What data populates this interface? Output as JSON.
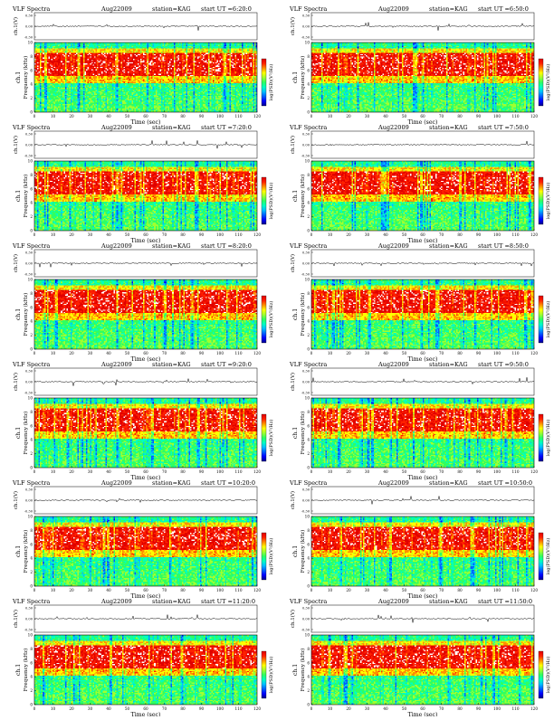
{
  "colors": {
    "colormap": [
      "#00008c",
      "#0000ff",
      "#0060ff",
      "#00c0ff",
      "#00ffc0",
      "#30ff60",
      "#a0ff30",
      "#ffff00",
      "#ff9000",
      "#ff2000",
      "#e00000",
      "#ffffff"
    ],
    "trace": "#000000",
    "frame": "#000000"
  },
  "chart_data": [
    {
      "type": "heatmap",
      "title": "VLF Spectra",
      "date": "Aug22009",
      "station": "station=KAG",
      "start": "start UT =6:20:0",
      "trace_ylabel": "ch.1(V)",
      "trace_ticks": [
        "0.30",
        "0.00",
        "-0.30"
      ],
      "channel_label": "ch.1",
      "ylabel": "Frequency (kHz)",
      "xlabel": "Time (sec)",
      "x_ticks": [
        "0",
        "10",
        "20",
        "30",
        "40",
        "50",
        "60",
        "70",
        "80",
        "90",
        "100",
        "110",
        "120"
      ],
      "y_ticks": [
        "0",
        "2",
        "4",
        "6",
        "8",
        "10"
      ],
      "xlim": [
        0,
        120
      ],
      "ylim": [
        0,
        10
      ],
      "colorbar_label": "log(PSD)(V²/Hz)"
    },
    {
      "type": "heatmap",
      "title": "VLF Spectra",
      "date": "Aug22009",
      "station": "station=KAG",
      "start": "start UT =6:50:0",
      "trace_ylabel": "ch.1(V)",
      "trace_ticks": [
        "0.30",
        "0.00",
        "-0.30"
      ],
      "channel_label": "ch.1",
      "ylabel": "Frequency (kHz)",
      "xlabel": "Time (sec)",
      "x_ticks": [
        "0",
        "10",
        "20",
        "30",
        "40",
        "50",
        "60",
        "70",
        "80",
        "90",
        "100",
        "110",
        "120"
      ],
      "y_ticks": [
        "0",
        "2",
        "4",
        "6",
        "8",
        "10"
      ],
      "xlim": [
        0,
        120
      ],
      "ylim": [
        0,
        10
      ],
      "colorbar_label": "log(PSD)(V²/Hz)"
    },
    {
      "type": "heatmap",
      "title": "VLF Spectra",
      "date": "Aug22009",
      "station": "station=KAG",
      "start": "start UT =7:20:0",
      "trace_ylabel": "ch.1(V)",
      "trace_ticks": [
        "0.30",
        "0.00",
        "-0.30"
      ],
      "channel_label": "ch.1",
      "ylabel": "Frequency (kHz)",
      "xlabel": "Time (sec)",
      "x_ticks": [
        "0",
        "10",
        "20",
        "30",
        "40",
        "50",
        "60",
        "70",
        "80",
        "90",
        "100",
        "110",
        "120"
      ],
      "y_ticks": [
        "0",
        "2",
        "4",
        "6",
        "8",
        "10"
      ],
      "xlim": [
        0,
        120
      ],
      "ylim": [
        0,
        10
      ],
      "colorbar_label": "log(PSD)(V²/Hz)"
    },
    {
      "type": "heatmap",
      "title": "VLF Spectra",
      "date": "Aug22009",
      "station": "station=KAG",
      "start": "start UT =7:50:0",
      "trace_ylabel": "ch.1(V)",
      "trace_ticks": [
        "0.30",
        "0.00",
        "-0.30"
      ],
      "channel_label": "ch.1",
      "ylabel": "Frequency (kHz)",
      "xlabel": "Time (sec)",
      "x_ticks": [
        "0",
        "10",
        "20",
        "30",
        "40",
        "50",
        "60",
        "70",
        "80",
        "90",
        "100",
        "110",
        "120"
      ],
      "y_ticks": [
        "0",
        "2",
        "4",
        "6",
        "8",
        "10"
      ],
      "xlim": [
        0,
        120
      ],
      "ylim": [
        0,
        10
      ],
      "colorbar_label": "log(PSD)(V²/Hz)"
    },
    {
      "type": "heatmap",
      "title": "VLF Spectra",
      "date": "Aug22009",
      "station": "station=KAG",
      "start": "start UT =8:20:0",
      "trace_ylabel": "ch.1(V)",
      "trace_ticks": [
        "0.30",
        "0.00",
        "-0.30"
      ],
      "channel_label": "ch.1",
      "ylabel": "Frequency (kHz)",
      "xlabel": "Time (sec)",
      "x_ticks": [
        "0",
        "10",
        "20",
        "30",
        "40",
        "50",
        "60",
        "70",
        "80",
        "90",
        "100",
        "110",
        "120"
      ],
      "y_ticks": [
        "0",
        "2",
        "4",
        "6",
        "8",
        "10"
      ],
      "xlim": [
        0,
        120
      ],
      "ylim": [
        0,
        10
      ],
      "colorbar_label": "log(PSD)(V²/Hz)"
    },
    {
      "type": "heatmap",
      "title": "VLF Spectra",
      "date": "Aug22009",
      "station": "station=KAG",
      "start": "start UT =8:50:0",
      "trace_ylabel": "ch.1(V)",
      "trace_ticks": [
        "0.30",
        "0.00",
        "-0.30"
      ],
      "channel_label": "ch.1",
      "ylabel": "Frequency (kHz)",
      "xlabel": "Time (sec)",
      "x_ticks": [
        "0",
        "10",
        "20",
        "30",
        "40",
        "50",
        "60",
        "70",
        "80",
        "90",
        "100",
        "110",
        "120"
      ],
      "y_ticks": [
        "0",
        "2",
        "4",
        "6",
        "8",
        "10"
      ],
      "xlim": [
        0,
        120
      ],
      "ylim": [
        0,
        10
      ],
      "colorbar_label": "log(PSD)(V²/Hz)"
    },
    {
      "type": "heatmap",
      "title": "VLF Spectra",
      "date": "Aug22009",
      "station": "station=KAG",
      "start": "start UT =9:20:0",
      "trace_ylabel": "ch.1(V)",
      "trace_ticks": [
        "0.30",
        "0.00",
        "-0.30"
      ],
      "channel_label": "ch.1",
      "ylabel": "Frequency (kHz)",
      "xlabel": "Time (sec)",
      "x_ticks": [
        "0",
        "10",
        "20",
        "30",
        "40",
        "50",
        "60",
        "70",
        "80",
        "90",
        "100",
        "110",
        "120"
      ],
      "y_ticks": [
        "0",
        "2",
        "4",
        "6",
        "8",
        "10"
      ],
      "xlim": [
        0,
        120
      ],
      "ylim": [
        0,
        10
      ],
      "colorbar_label": "log(PSD)(V²/Hz)"
    },
    {
      "type": "heatmap",
      "title": "VLF Spectra",
      "date": "Aug22009",
      "station": "station=KAG",
      "start": "start UT =9:50:0",
      "trace_ylabel": "ch.1(V)",
      "trace_ticks": [
        "0.30",
        "0.00",
        "-0.30"
      ],
      "channel_label": "ch.1",
      "ylabel": "Frequency (kHz)",
      "xlabel": "Time (sec)",
      "x_ticks": [
        "0",
        "10",
        "20",
        "30",
        "40",
        "50",
        "60",
        "70",
        "80",
        "90",
        "100",
        "110",
        "120"
      ],
      "y_ticks": [
        "0",
        "2",
        "4",
        "6",
        "8",
        "10"
      ],
      "xlim": [
        0,
        120
      ],
      "ylim": [
        0,
        10
      ],
      "colorbar_label": "log(PSD)(V²/Hz)"
    },
    {
      "type": "heatmap",
      "title": "VLF Spectra",
      "date": "Aug22009",
      "station": "station=KAG",
      "start": "start UT =10:20:0",
      "trace_ylabel": "ch.1(V)",
      "trace_ticks": [
        "0.30",
        "0.00",
        "-0.30"
      ],
      "channel_label": "ch.1",
      "ylabel": "Frequency (kHz)",
      "xlabel": "Time (sec)",
      "x_ticks": [
        "0",
        "10",
        "20",
        "30",
        "40",
        "50",
        "60",
        "70",
        "80",
        "90",
        "100",
        "110",
        "120"
      ],
      "y_ticks": [
        "0",
        "2",
        "4",
        "6",
        "8",
        "10"
      ],
      "xlim": [
        0,
        120
      ],
      "ylim": [
        0,
        10
      ],
      "colorbar_label": "log(PSD)(V²/Hz)"
    },
    {
      "type": "heatmap",
      "title": "VLF Spectra",
      "date": "Aug22009",
      "station": "station=KAG",
      "start": "start UT =10:50:0",
      "trace_ylabel": "ch.1(V)",
      "trace_ticks": [
        "0.30",
        "0.00",
        "-0.30"
      ],
      "channel_label": "ch.1",
      "ylabel": "Frequency (kHz)",
      "xlabel": "Time (sec)",
      "x_ticks": [
        "0",
        "10",
        "20",
        "30",
        "40",
        "50",
        "60",
        "70",
        "80",
        "90",
        "100",
        "110",
        "120"
      ],
      "y_ticks": [
        "0",
        "2",
        "4",
        "6",
        "8",
        "10"
      ],
      "xlim": [
        0,
        120
      ],
      "ylim": [
        0,
        10
      ],
      "colorbar_label": "log(PSD)(V²/Hz)"
    },
    {
      "type": "heatmap",
      "title": "VLF Spectra",
      "date": "Aug22009",
      "station": "station=KAG",
      "start": "start UT =11:20:0",
      "trace_ylabel": "ch.1(V)",
      "trace_ticks": [
        "0.30",
        "0.00",
        "-0.30"
      ],
      "channel_label": "ch.1",
      "ylabel": "Frequency (kHz)",
      "xlabel": "Time (sec)",
      "x_ticks": [
        "0",
        "10",
        "20",
        "30",
        "40",
        "50",
        "60",
        "70",
        "80",
        "90",
        "100",
        "110",
        "120"
      ],
      "y_ticks": [
        "0",
        "2",
        "4",
        "6",
        "8",
        "10"
      ],
      "xlim": [
        0,
        120
      ],
      "ylim": [
        0,
        10
      ],
      "colorbar_label": "log(PSD)(V²/Hz)"
    },
    {
      "type": "heatmap",
      "title": "VLF Spectra",
      "date": "Aug22009",
      "station": "station=KAG",
      "start": "start UT =11:50:0",
      "trace_ylabel": "ch.1(V)",
      "trace_ticks": [
        "0.30",
        "0.00",
        "-0.30"
      ],
      "channel_label": "ch.1",
      "ylabel": "Frequency (kHz)",
      "xlabel": "Time (sec)",
      "x_ticks": [
        "0",
        "10",
        "20",
        "30",
        "40",
        "50",
        "60",
        "70",
        "80",
        "90",
        "100",
        "110",
        "120"
      ],
      "y_ticks": [
        "0",
        "2",
        "4",
        "6",
        "8",
        "10"
      ],
      "xlim": [
        0,
        120
      ],
      "ylim": [
        0,
        10
      ],
      "colorbar_label": "log(PSD)(V²/Hz)"
    }
  ]
}
